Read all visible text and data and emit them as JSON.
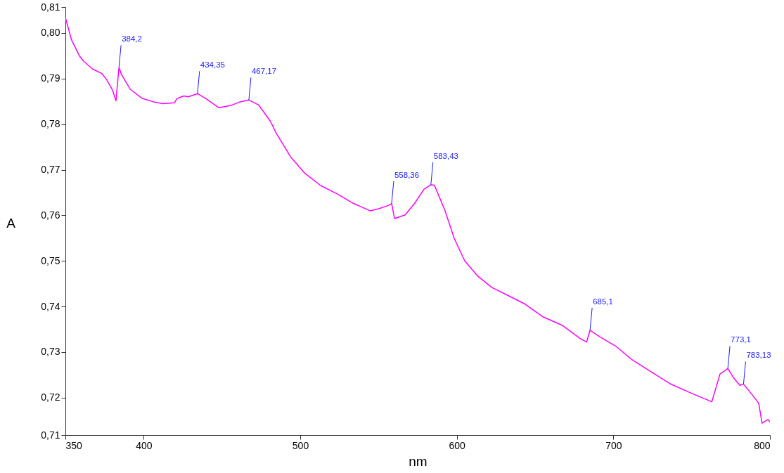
{
  "chart_data": {
    "type": "line",
    "xlabel": "nm",
    "ylabel": "A",
    "xlim": [
      350,
      800
    ],
    "xticks": [
      350,
      400,
      500,
      600,
      700,
      800
    ],
    "ylim": [
      0.7118,
      0.8057
    ],
    "yticks": [
      {
        "value": 0.7118,
        "label": "0,71"
      },
      {
        "value": 0.72,
        "label": "0,72"
      },
      {
        "value": 0.73,
        "label": "0,73"
      },
      {
        "value": 0.74,
        "label": "0,74"
      },
      {
        "value": 0.75,
        "label": "0,75"
      },
      {
        "value": 0.76,
        "label": "0,76"
      },
      {
        "value": 0.77,
        "label": "0,77"
      },
      {
        "value": 0.78,
        "label": "0,78"
      },
      {
        "value": 0.79,
        "label": "0,79"
      },
      {
        "value": 0.8,
        "label": "0,80"
      },
      {
        "value": 0.8057,
        "label": "0,81"
      }
    ],
    "marker": "none",
    "line_style": "solid",
    "series": [
      {
        "color": "#ff00ff",
        "x": [
          350,
          353.9,
          359.1,
          361.4,
          367.4,
          373.3,
          376.3,
          380.1,
          382.3,
          384.2,
          386.0,
          391.3,
          398.8,
          406.2,
          412.2,
          419.7,
          421.2,
          425.7,
          428.4,
          434.4,
          440.6,
          448.1,
          455.6,
          461.6,
          467.2,
          473.5,
          481.0,
          484.7,
          493.7,
          502.7,
          513.2,
          523.6,
          534.1,
          544.6,
          550.5,
          556.5,
          558.4,
          560.2,
          567.0,
          573.0,
          579.0,
          583.4,
          585.7,
          592.4,
          598.4,
          605.1,
          613.3,
          622.3,
          632.8,
          643.2,
          655.2,
          667.2,
          679.1,
          682.9,
          685.1,
          691.1,
          701.6,
          712.0,
          724.0,
          736.0,
          751.0,
          762.9,
          768.1,
          773.1,
          777.1,
          780.8,
          783.1,
          788.3,
          792.8,
          795.0,
          798.8,
          800
        ],
        "values": [
          0.8034,
          0.7985,
          0.7949,
          0.7939,
          0.7921,
          0.7911,
          0.7898,
          0.7875,
          0.7851,
          0.7924,
          0.7908,
          0.7877,
          0.7857,
          0.7849,
          0.7845,
          0.7847,
          0.7856,
          0.7862,
          0.786,
          0.7867,
          0.7854,
          0.7836,
          0.7841,
          0.7849,
          0.7853,
          0.7842,
          0.7806,
          0.778,
          0.7729,
          0.7693,
          0.7665,
          0.7647,
          0.7626,
          0.761,
          0.7615,
          0.7622,
          0.7626,
          0.7593,
          0.7601,
          0.7626,
          0.7657,
          0.7667,
          0.7666,
          0.7611,
          0.7549,
          0.75,
          0.7467,
          0.7442,
          0.7424,
          0.7406,
          0.7377,
          0.7359,
          0.7329,
          0.7322,
          0.7348,
          0.7334,
          0.7313,
          0.7283,
          0.7257,
          0.7231,
          0.7208,
          0.7191,
          0.7252,
          0.7264,
          0.7242,
          0.7227,
          0.723,
          0.7208,
          0.7188,
          0.7144,
          0.7152,
          0.7147
        ]
      }
    ],
    "annotations": [
      {
        "text": "384,2",
        "x": 384.2,
        "y": 0.7924
      },
      {
        "text": "434,35",
        "x": 434.35,
        "y": 0.7867
      },
      {
        "text": "467,17",
        "x": 467.17,
        "y": 0.7853
      },
      {
        "text": "558,36",
        "x": 558.36,
        "y": 0.7626
      },
      {
        "text": "583,43",
        "x": 583.43,
        "y": 0.7667
      },
      {
        "text": "685,1",
        "x": 685.1,
        "y": 0.7348
      },
      {
        "text": "773,1",
        "x": 773.1,
        "y": 0.7264
      },
      {
        "text": "783,13",
        "x": 783.13,
        "y": 0.723
      }
    ]
  }
}
